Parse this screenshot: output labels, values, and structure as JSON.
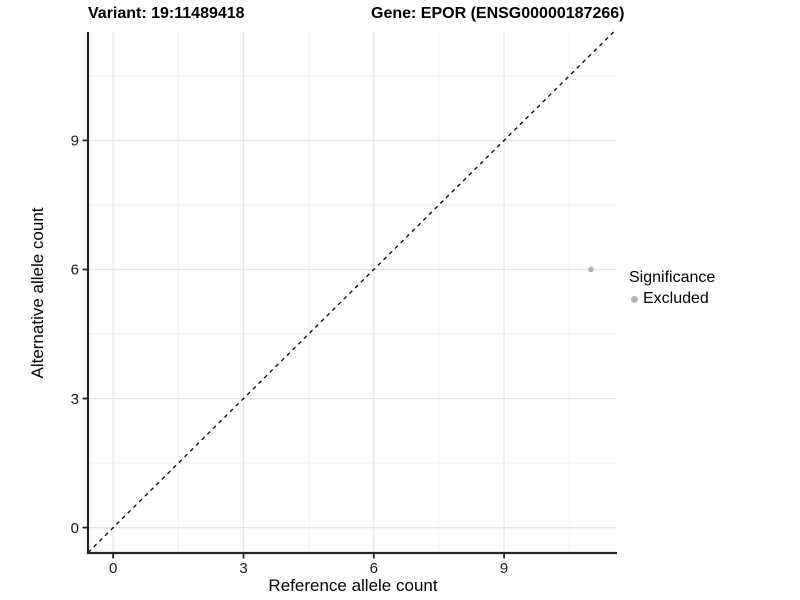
{
  "header": {
    "variant_title": "Variant: 19:11489418",
    "gene_title": "Gene: EPOR (ENSG00000187266)"
  },
  "chart_data": {
    "type": "scatter",
    "title": "Variant: 19:11489418   Gene: EPOR (ENSG00000187266)",
    "xlabel": "Reference allele count",
    "ylabel": "Alternative allele count",
    "xlim": [
      -0.58,
      11.6
    ],
    "ylim": [
      -0.59,
      11.52
    ],
    "xticks": [
      0,
      3,
      6,
      9
    ],
    "yticks": [
      0,
      3,
      6,
      9
    ],
    "minor_xticks": [
      1.5,
      4.5,
      7.5,
      10.5
    ],
    "minor_yticks": [
      1.5,
      4.5,
      7.5,
      10.5
    ],
    "grid": "major+minor",
    "legend_position": "right",
    "series": [
      {
        "name": "Excluded",
        "color": "#b3b3b3",
        "points": [
          {
            "x": 11,
            "y": 6
          }
        ]
      }
    ],
    "abline": {
      "slope": 1,
      "intercept": 0,
      "style": "dashed",
      "color": "#000000"
    },
    "legend": {
      "title": "Significance",
      "items": [
        {
          "label": "Excluded",
          "color": "#b3b3b3"
        }
      ]
    }
  }
}
